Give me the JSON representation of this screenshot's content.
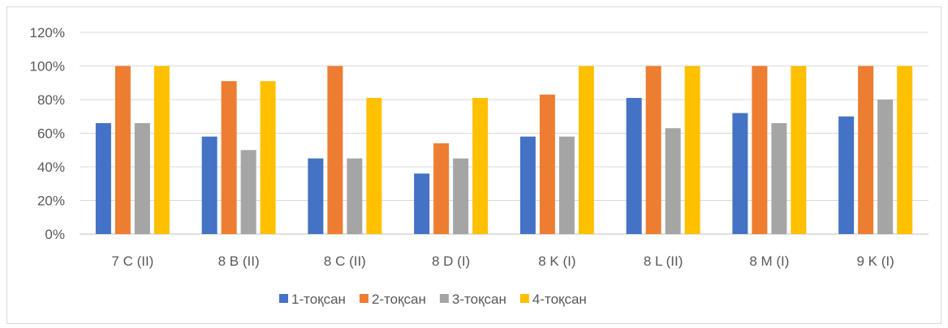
{
  "chart_data": {
    "type": "bar",
    "categories": [
      "7 C (II)",
      "8 B (II)",
      "8 C (II)",
      "8 D (I)",
      "8 K (I)",
      "8 L (II)",
      "8 M (I)",
      "9 K (I)"
    ],
    "series": [
      {
        "name": "1-тоқсан",
        "color": "#4472c4",
        "values": [
          66,
          58,
          45,
          36,
          58,
          81,
          72,
          70
        ]
      },
      {
        "name": "2-тоқсан",
        "color": "#ed7d31",
        "values": [
          100,
          91,
          100,
          54,
          83,
          100,
          100,
          100
        ]
      },
      {
        "name": "3-тоқсан",
        "color": "#a5a5a5",
        "values": [
          66,
          50,
          45,
          45,
          58,
          63,
          66,
          80
        ]
      },
      {
        "name": "4-тоқсан",
        "color": "#ffc000",
        "values": [
          100,
          91,
          81,
          81,
          100,
          100,
          100,
          100
        ]
      }
    ],
    "y_ticks": [
      "0%",
      "20%",
      "40%",
      "60%",
      "80%",
      "100%",
      "120%"
    ],
    "ylim": [
      0,
      120
    ],
    "grid": true,
    "legend_position": "bottom",
    "title": "",
    "xlabel": "",
    "ylabel": ""
  }
}
